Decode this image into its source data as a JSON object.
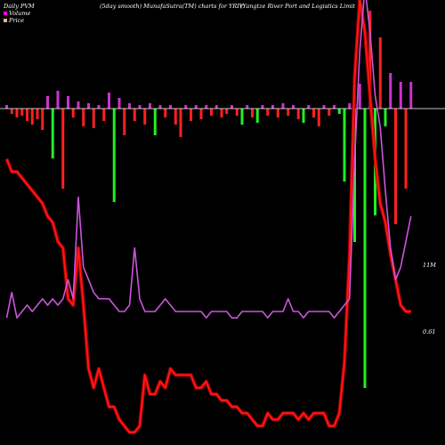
{
  "header": {
    "left": "Daily PVM",
    "mid": "(5day smooth) MunafaSutra(TM) charts for YRIV",
    "right": "(Yangtze  River Port and Logistics Limit"
  },
  "legend": [
    {
      "label": "Volume",
      "color": "#ff00ff"
    },
    {
      "label": "Price",
      "color": "#ffb080"
    }
  ],
  "labels": {
    "volume_last": "11M",
    "price_last": "0.61"
  },
  "colors": {
    "background": "#000000",
    "up_bar": "#cc33cc",
    "down_red": "#ff2020",
    "down_green": "#22ee22",
    "baseline": "#ffffff",
    "price_line": "#ff1515",
    "volume_line": "#cc55dd"
  },
  "chart_data": {
    "type": "bar",
    "bars": [
      {
        "value": 4,
        "color": "up"
      },
      {
        "value": -6,
        "color": "red"
      },
      {
        "value": -10,
        "color": "red"
      },
      {
        "value": -8,
        "color": "red"
      },
      {
        "value": -14,
        "color": "red"
      },
      {
        "value": -18,
        "color": "red"
      },
      {
        "value": -12,
        "color": "red"
      },
      {
        "value": -24,
        "color": "red"
      },
      {
        "value": 14,
        "color": "up"
      },
      {
        "value": -56,
        "color": "green"
      },
      {
        "value": 20,
        "color": "up"
      },
      {
        "value": -90,
        "color": "red"
      },
      {
        "value": 14,
        "color": "up"
      },
      {
        "value": -10,
        "color": "red"
      },
      {
        "value": 8,
        "color": "up"
      },
      {
        "value": -20,
        "color": "red"
      },
      {
        "value": 6,
        "color": "up"
      },
      {
        "value": -22,
        "color": "red"
      },
      {
        "value": 4,
        "color": "up"
      },
      {
        "value": -14,
        "color": "red"
      },
      {
        "value": 18,
        "color": "up"
      },
      {
        "value": -105,
        "color": "green"
      },
      {
        "value": 12,
        "color": "up"
      },
      {
        "value": -30,
        "color": "red"
      },
      {
        "value": 6,
        "color": "up"
      },
      {
        "value": -14,
        "color": "red"
      },
      {
        "value": 4,
        "color": "up"
      },
      {
        "value": -18,
        "color": "red"
      },
      {
        "value": 6,
        "color": "up"
      },
      {
        "value": -30,
        "color": "green"
      },
      {
        "value": 4,
        "color": "up"
      },
      {
        "value": -10,
        "color": "red"
      },
      {
        "value": 4,
        "color": "up"
      },
      {
        "value": -18,
        "color": "red"
      },
      {
        "value": -32,
        "color": "red"
      },
      {
        "value": 4,
        "color": "up"
      },
      {
        "value": -14,
        "color": "red"
      },
      {
        "value": 4,
        "color": "up"
      },
      {
        "value": -12,
        "color": "red"
      },
      {
        "value": 4,
        "color": "up"
      },
      {
        "value": -8,
        "color": "red"
      },
      {
        "value": 4,
        "color": "up"
      },
      {
        "value": -10,
        "color": "red"
      },
      {
        "value": -6,
        "color": "red"
      },
      {
        "value": 4,
        "color": "up"
      },
      {
        "value": -8,
        "color": "red"
      },
      {
        "value": -18,
        "color": "green"
      },
      {
        "value": 4,
        "color": "up"
      },
      {
        "value": -10,
        "color": "red"
      },
      {
        "value": -16,
        "color": "green"
      },
      {
        "value": 4,
        "color": "up"
      },
      {
        "value": -8,
        "color": "red"
      },
      {
        "value": 4,
        "color": "up"
      },
      {
        "value": -10,
        "color": "red"
      },
      {
        "value": 6,
        "color": "up"
      },
      {
        "value": -8,
        "color": "red"
      },
      {
        "value": 4,
        "color": "up"
      },
      {
        "value": -12,
        "color": "red"
      },
      {
        "value": -16,
        "color": "green"
      },
      {
        "value": 4,
        "color": "up"
      },
      {
        "value": -10,
        "color": "red"
      },
      {
        "value": -20,
        "color": "red"
      },
      {
        "value": 4,
        "color": "up"
      },
      {
        "value": -8,
        "color": "red"
      },
      {
        "value": 4,
        "color": "up"
      },
      {
        "value": -6,
        "color": "green"
      },
      {
        "value": -82,
        "color": "green"
      },
      {
        "value": 6,
        "color": "up"
      },
      {
        "value": -150,
        "color": "green"
      },
      {
        "value": 28,
        "color": "up"
      },
      {
        "value": -314,
        "color": "green"
      },
      {
        "value": 110,
        "color": "red"
      },
      {
        "value": -120,
        "color": "green"
      },
      {
        "value": 80,
        "color": "red"
      },
      {
        "value": -20,
        "color": "green"
      },
      {
        "value": 40,
        "color": "up"
      },
      {
        "value": -130,
        "color": "red"
      },
      {
        "value": 30,
        "color": "up"
      },
      {
        "value": -90,
        "color": "red"
      },
      {
        "value": 30,
        "color": "up"
      }
    ],
    "price": [
      0.85,
      0.83,
      0.83,
      0.82,
      0.81,
      0.8,
      0.79,
      0.78,
      0.76,
      0.75,
      0.72,
      0.71,
      0.63,
      0.62,
      0.71,
      0.62,
      0.52,
      0.49,
      0.52,
      0.49,
      0.46,
      0.46,
      0.44,
      0.43,
      0.42,
      0.42,
      0.43,
      0.51,
      0.48,
      0.48,
      0.5,
      0.49,
      0.52,
      0.51,
      0.51,
      0.51,
      0.51,
      0.49,
      0.49,
      0.5,
      0.48,
      0.48,
      0.47,
      0.47,
      0.46,
      0.46,
      0.45,
      0.45,
      0.44,
      0.43,
      0.43,
      0.45,
      0.44,
      0.44,
      0.45,
      0.45,
      0.45,
      0.44,
      0.45,
      0.44,
      0.45,
      0.45,
      0.45,
      0.43,
      0.43,
      0.45,
      0.53,
      0.7,
      0.98,
      1.1,
      1.05,
      0.95,
      0.85,
      0.78,
      0.75,
      0.7,
      0.66,
      0.62,
      0.61,
      0.61
    ],
    "volume": [
      0.6,
      0.64,
      0.6,
      0.61,
      0.62,
      0.61,
      0.62,
      0.63,
      0.62,
      0.63,
      0.62,
      0.63,
      0.66,
      0.63,
      0.79,
      0.68,
      0.66,
      0.64,
      0.63,
      0.63,
      0.63,
      0.62,
      0.61,
      0.61,
      0.62,
      0.71,
      0.63,
      0.61,
      0.61,
      0.61,
      0.62,
      0.63,
      0.62,
      0.61,
      0.61,
      0.61,
      0.61,
      0.61,
      0.61,
      0.6,
      0.61,
      0.61,
      0.61,
      0.61,
      0.6,
      0.6,
      0.61,
      0.61,
      0.61,
      0.61,
      0.61,
      0.6,
      0.61,
      0.61,
      0.61,
      0.63,
      0.61,
      0.61,
      0.6,
      0.61,
      0.61,
      0.61,
      0.61,
      0.61,
      0.6,
      0.61,
      0.62,
      0.63,
      0.85,
      1.02,
      1.12,
      1.05,
      0.95,
      0.9,
      0.8,
      0.71,
      0.66,
      0.68,
      0.72,
      0.76
    ]
  }
}
